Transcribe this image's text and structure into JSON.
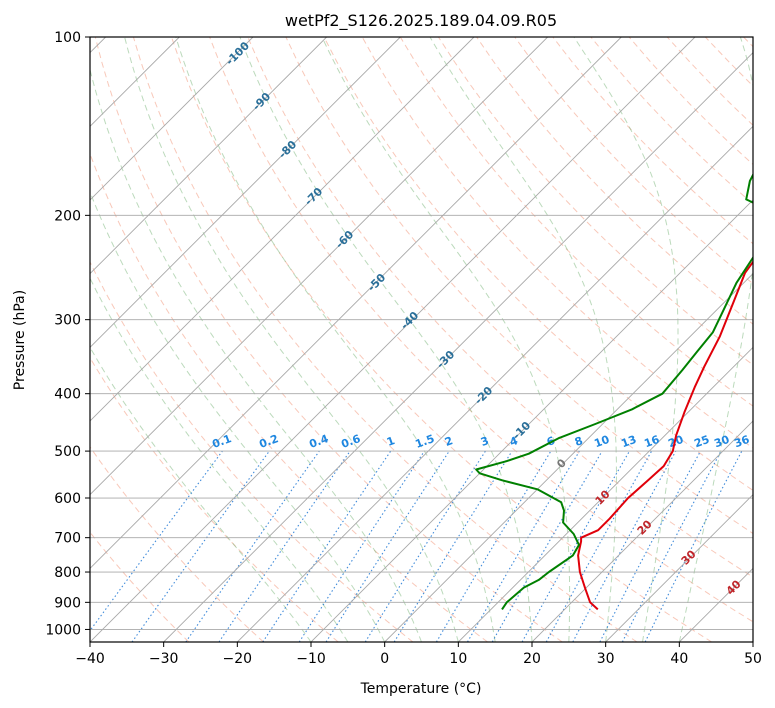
{
  "chart_data": {
    "type": "line",
    "title": "wetPf2_S126.2025.189.04.09.R05",
    "xlabel": "Temperature (°C)",
    "ylabel": "Pressure (hPa)",
    "xlim": [
      -40,
      50
    ],
    "ylim": [
      1050,
      100
    ],
    "y_scale": "log",
    "grid": true,
    "x_ticks": [
      -40,
      -30,
      -20,
      -10,
      0,
      10,
      20,
      30,
      40,
      50
    ],
    "x_tick_labels": [
      "−40",
      "−30",
      "−20",
      "−10",
      "0",
      "10",
      "20",
      "30",
      "40",
      "50"
    ],
    "y_ticks": [
      100,
      200,
      300,
      400,
      500,
      600,
      700,
      800,
      900,
      1000
    ],
    "y_tick_labels": [
      "100",
      "200",
      "300",
      "400",
      "500",
      "600",
      "700",
      "800",
      "900",
      "1000"
    ],
    "isotherm_labels": [
      "-100",
      "-90",
      "-80",
      "-70",
      "-60",
      "-50",
      "-40",
      "-30",
      "-20",
      "-10",
      "0",
      "10",
      "20",
      "30",
      "40"
    ],
    "mixing_ratio_labels": [
      "0.1",
      "0.2",
      "0.4",
      "0.6",
      "1",
      "1.5",
      "2",
      "3",
      "4",
      "6",
      "8",
      "10",
      "13",
      "16",
      "20",
      "25",
      "30",
      "36"
    ],
    "series": [
      {
        "color": "#e0000a",
        "points": [
          [
            24.5,
            925
          ],
          [
            22.5,
            900
          ],
          [
            19.8,
            850
          ],
          [
            17.0,
            800
          ],
          [
            14.5,
            750
          ],
          [
            13.0,
            710
          ],
          [
            12.5,
            700
          ],
          [
            13.8,
            680
          ],
          [
            13.8,
            650
          ],
          [
            13.5,
            600
          ],
          [
            13.8,
            560
          ],
          [
            14.0,
            530
          ],
          [
            13.2,
            500
          ],
          [
            11.5,
            470
          ],
          [
            9.5,
            430
          ],
          [
            7.5,
            390
          ],
          [
            6.0,
            360
          ],
          [
            4.0,
            320
          ],
          [
            1.2,
            280
          ],
          [
            -1.2,
            250
          ],
          [
            -2.2,
            225
          ],
          [
            -1.8,
            210
          ],
          [
            0.0,
            200
          ],
          [
            5.5,
            190
          ],
          [
            11.5,
            175
          ],
          [
            14.5,
            165
          ],
          [
            17.0,
            150
          ],
          [
            20.0,
            140
          ],
          [
            22.5,
            130
          ],
          [
            23.5,
            125
          ],
          [
            24.5,
            115
          ],
          [
            27.0,
            108
          ],
          [
            30.0,
            100
          ]
        ]
      },
      {
        "color": "#008000",
        "points": [
          [
            11.5,
            925
          ],
          [
            11.2,
            900
          ],
          [
            11.5,
            850
          ],
          [
            12.5,
            825
          ],
          [
            12.8,
            800
          ],
          [
            13.8,
            750
          ],
          [
            13.2,
            720
          ],
          [
            11.0,
            690
          ],
          [
            8.0,
            660
          ],
          [
            6.5,
            630
          ],
          [
            5.0,
            610
          ],
          [
            0.0,
            580
          ],
          [
            -6.0,
            560
          ],
          [
            -10.0,
            545
          ],
          [
            -11.0,
            537
          ],
          [
            -8.0,
            520
          ],
          [
            -6.0,
            505
          ],
          [
            -4.0,
            475
          ],
          [
            -1.0,
            450
          ],
          [
            2.0,
            425
          ],
          [
            4.0,
            400
          ],
          [
            3.5,
            365
          ],
          [
            3.0,
            340
          ],
          [
            2.5,
            315
          ],
          [
            1.0,
            290
          ],
          [
            -1.0,
            260
          ],
          [
            -2.2,
            235
          ],
          [
            -2.0,
            215
          ],
          [
            -2.5,
            205
          ],
          [
            -7.0,
            195
          ],
          [
            -11.0,
            188
          ],
          [
            -13.0,
            175
          ],
          [
            -14.0,
            165
          ],
          [
            -14.0,
            160
          ],
          [
            -12.5,
            150
          ],
          [
            -12.5,
            140
          ],
          [
            -11.0,
            130
          ],
          [
            -8.0,
            120
          ],
          [
            -5.0,
            110
          ],
          [
            -1.0,
            100
          ]
        ]
      }
    ]
  }
}
